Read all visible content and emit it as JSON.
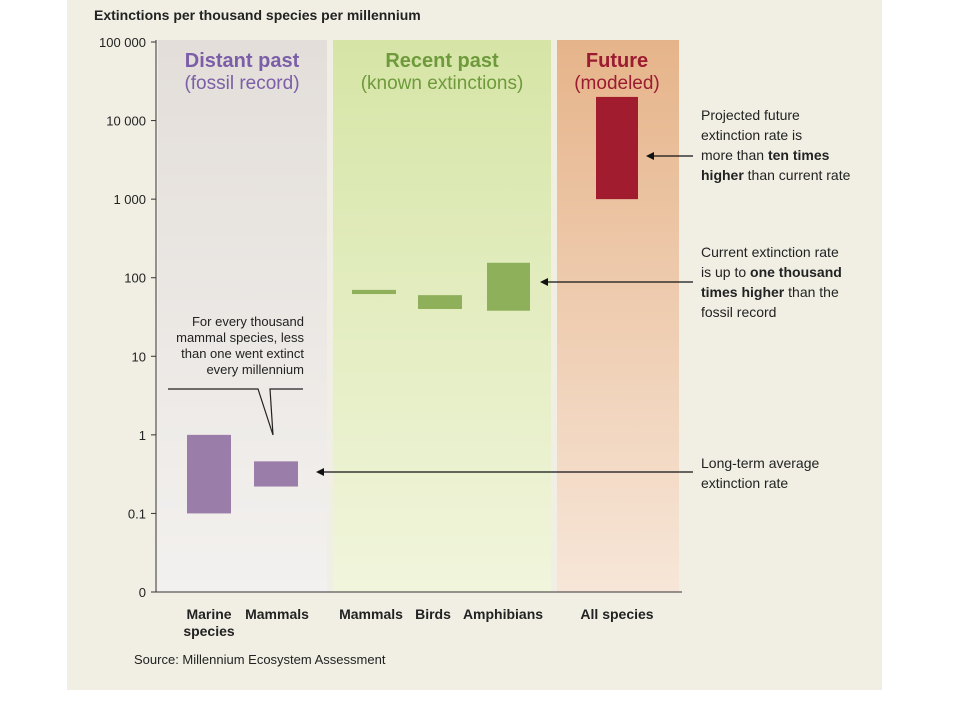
{
  "chart_data": {
    "type": "bar",
    "title": "Extinctions per thousand species per millennium",
    "source": "Source: Millennium Ecosystem Assessment",
    "yscale": "log",
    "yticks": [
      {
        "value": 100000,
        "label": "100 000"
      },
      {
        "value": 10000,
        "label": "10 000"
      },
      {
        "value": 1000,
        "label": "1 000"
      },
      {
        "value": 100,
        "label": "100"
      },
      {
        "value": 10,
        "label": "10"
      },
      {
        "value": 1,
        "label": "1"
      },
      {
        "value": 0.1,
        "label": "0.1"
      },
      {
        "value": 0.01,
        "label": "0"
      }
    ],
    "panels": [
      {
        "title": "Distant past",
        "subtitle": "(fossil record)",
        "title_color": "#7b5ea7"
      },
      {
        "title": "Recent past",
        "subtitle": "(known extinctions)",
        "title_color": "#6e9a3c"
      },
      {
        "title": "Future",
        "subtitle": "(modeled)",
        "title_color": "#9b1b30"
      }
    ],
    "bars": [
      {
        "category_lines": [
          "Marine",
          "species"
        ],
        "low": 0.1,
        "high": 1,
        "color": "#9a7da8"
      },
      {
        "category_lines": [
          "Mammals"
        ],
        "low": 0.22,
        "high": 0.46,
        "color": "#9a7da8"
      },
      {
        "category_lines": [
          "Mammals"
        ],
        "low": 62,
        "high": 70,
        "color": "#8fb05a"
      },
      {
        "category_lines": [
          "Birds"
        ],
        "low": 40,
        "high": 60,
        "color": "#8fb05a"
      },
      {
        "category_lines": [
          "Amphibians"
        ],
        "low": 38,
        "high": 155,
        "color": "#8fb05a"
      },
      {
        "category_lines": [
          "All species"
        ],
        "low": 1000,
        "high": 20000,
        "color": "#a01c2e"
      }
    ],
    "annotations": [
      {
        "lines": [
          "For every thousand",
          "mammal species, less",
          "than one went extinct",
          "every millennium"
        ]
      },
      {
        "lines": [
          [
            "Projected future",
            ""
          ],
          [
            "extinction rate is",
            ""
          ],
          [
            "more than ",
            "ten times"
          ],
          [
            "higher",
            " than current rate"
          ]
        ]
      },
      {
        "lines": [
          [
            "Current extinction rate",
            ""
          ],
          [
            "is up to ",
            "one thousand"
          ],
          [
            "times higher",
            " than the"
          ],
          [
            "fossil record",
            ""
          ]
        ]
      },
      {
        "lines": [
          [
            "Long-term average",
            ""
          ],
          [
            "extinction rate",
            ""
          ]
        ]
      }
    ]
  }
}
